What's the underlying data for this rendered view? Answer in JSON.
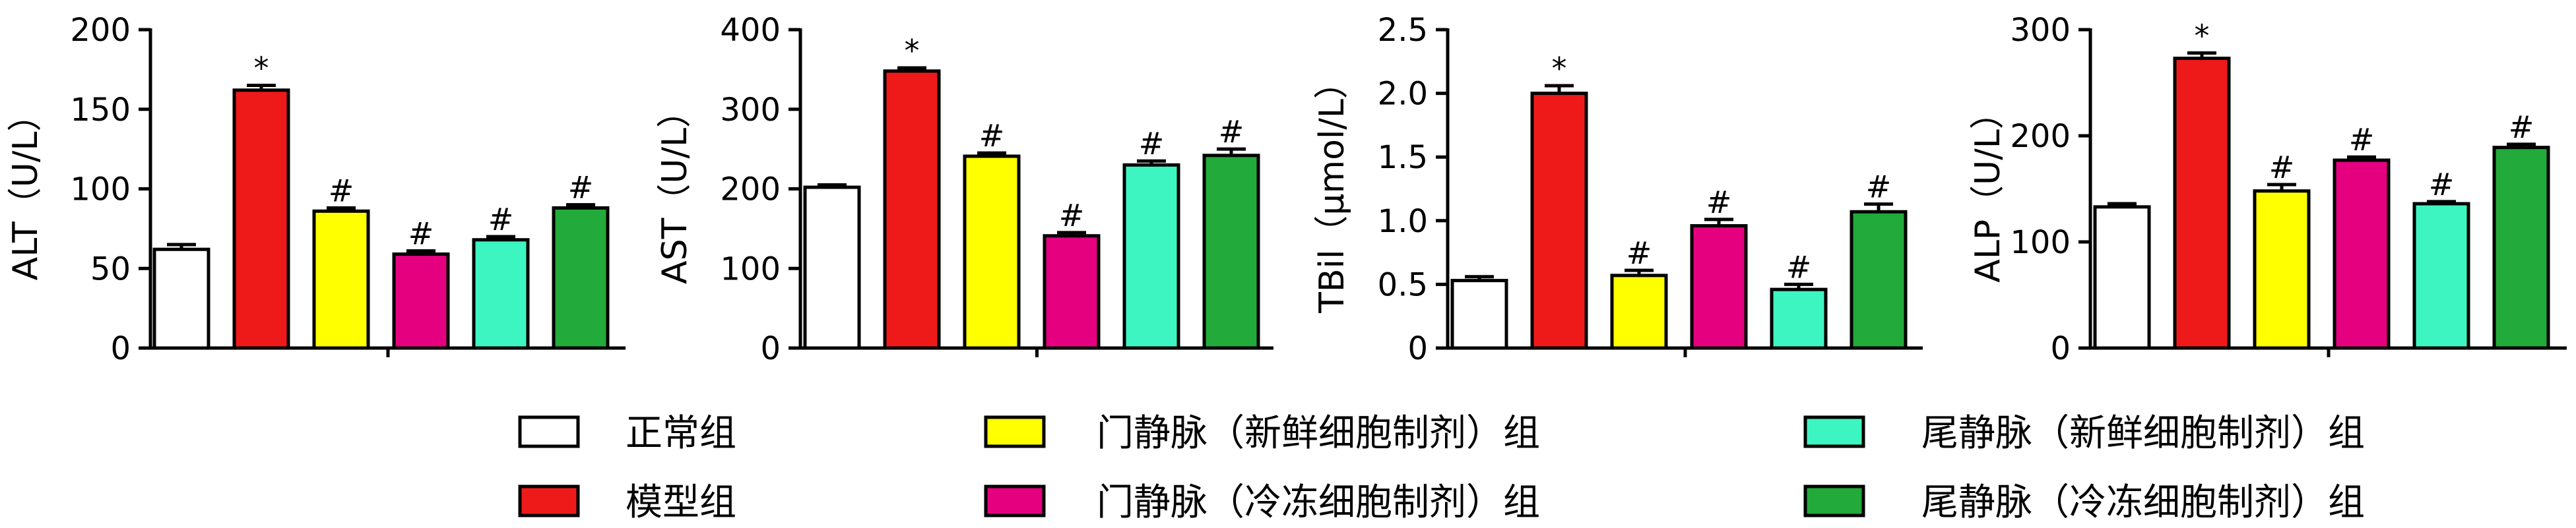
{
  "chart_data": [
    {
      "type": "bar",
      "ylabel": "ALT（U/L）",
      "ylim": [
        0,
        200
      ],
      "yticks": [
        0,
        50,
        100,
        150,
        200
      ],
      "bars": [
        {
          "value": 62,
          "err": 3,
          "mark": ""
        },
        {
          "value": 162,
          "err": 3,
          "mark": "*"
        },
        {
          "value": 86,
          "err": 2,
          "mark": "#"
        },
        {
          "value": 59,
          "err": 2,
          "mark": "#"
        },
        {
          "value": 68,
          "err": 2,
          "mark": "#"
        },
        {
          "value": 88,
          "err": 2,
          "mark": "#"
        }
      ]
    },
    {
      "type": "bar",
      "ylabel": "AST（U/L）",
      "ylim": [
        0,
        400
      ],
      "yticks": [
        0,
        100,
        200,
        300,
        400
      ],
      "bars": [
        {
          "value": 202,
          "err": 3,
          "mark": ""
        },
        {
          "value": 348,
          "err": 4,
          "mark": "*"
        },
        {
          "value": 241,
          "err": 4,
          "mark": "#"
        },
        {
          "value": 141,
          "err": 4,
          "mark": "#"
        },
        {
          "value": 230,
          "err": 5,
          "mark": "#"
        },
        {
          "value": 242,
          "err": 8,
          "mark": "#"
        }
      ]
    },
    {
      "type": "bar",
      "ylabel": "TBil（μmol/L）",
      "ylim": [
        0,
        2.5
      ],
      "yticks": [
        0,
        0.5,
        1.0,
        1.5,
        2.0,
        2.5
      ],
      "ytick_labels": [
        "0",
        "0.5",
        "1.0",
        "1.5",
        "2.0",
        "2.5"
      ],
      "bars": [
        {
          "value": 0.53,
          "err": 0.03,
          "mark": ""
        },
        {
          "value": 2.0,
          "err": 0.06,
          "mark": "*"
        },
        {
          "value": 0.57,
          "err": 0.04,
          "mark": "#"
        },
        {
          "value": 0.96,
          "err": 0.05,
          "mark": "#"
        },
        {
          "value": 0.46,
          "err": 0.04,
          "mark": "#"
        },
        {
          "value": 1.07,
          "err": 0.06,
          "mark": "#"
        }
      ]
    },
    {
      "type": "bar",
      "ylabel": "ALP（U/L）",
      "ylim": [
        0,
        300
      ],
      "yticks": [
        0,
        100,
        200,
        300
      ],
      "bars": [
        {
          "value": 133,
          "err": 3,
          "mark": ""
        },
        {
          "value": 273,
          "err": 5,
          "mark": "*"
        },
        {
          "value": 148,
          "err": 6,
          "mark": "#"
        },
        {
          "value": 177,
          "err": 3,
          "mark": "#"
        },
        {
          "value": 136,
          "err": 2,
          "mark": "#"
        },
        {
          "value": 189,
          "err": 3,
          "mark": "#"
        }
      ]
    }
  ],
  "legend": {
    "items": [
      {
        "label": "正常组",
        "color": "#ffffff"
      },
      {
        "label": "模型组",
        "color": "#ee1a1a"
      },
      {
        "label": "门静脉（新鲜细胞制剂）组",
        "color": "#ffff00"
      },
      {
        "label": "门静脉（冷冻细胞制剂）组",
        "color": "#e4007f"
      },
      {
        "label": "尾静脉（新鲜细胞制剂）组",
        "color": "#3df5c0"
      },
      {
        "label": "尾静脉（冷冻细胞制剂）组",
        "color": "#22aa3a"
      }
    ]
  }
}
